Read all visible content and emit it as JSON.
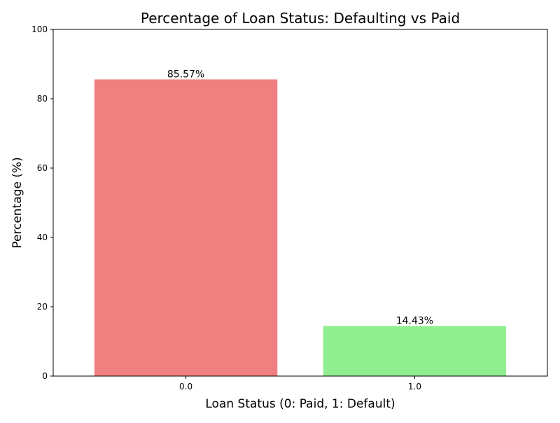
{
  "chart_data": {
    "type": "bar",
    "title": "Percentage of Loan Status: Defaulting vs Paid",
    "xlabel": "Loan Status (0: Paid, 1: Default)",
    "ylabel": "Percentage (%)",
    "categories": [
      "0.0",
      "1.0"
    ],
    "values": [
      85.57,
      14.43
    ],
    "data_labels": [
      "85.57%",
      "14.43%"
    ],
    "colors": [
      "#f08080",
      "#90ee90"
    ],
    "ylim": [
      0,
      100
    ],
    "yticks": [
      0,
      20,
      40,
      60,
      80,
      100
    ],
    "ytick_labels": [
      "0",
      "20",
      "40",
      "60",
      "80",
      "100"
    ],
    "grid": false,
    "legend": "none"
  }
}
